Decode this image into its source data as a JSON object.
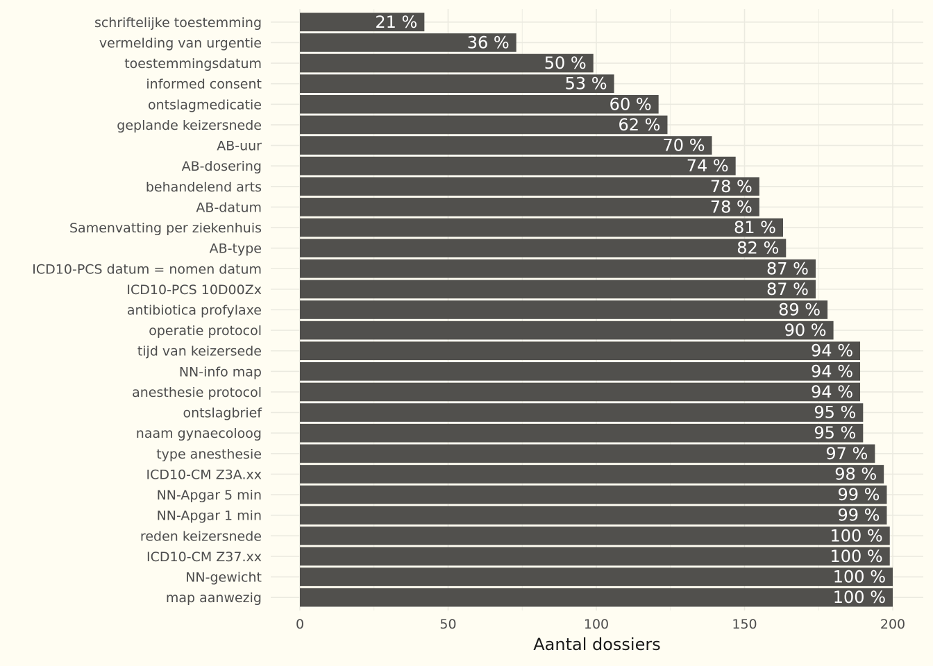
{
  "chart_data": {
    "type": "bar",
    "orientation": "horizontal",
    "categories": [
      "schriftelijke toestemming",
      "vermelding van urgentie",
      "toestemmingsdatum",
      "informed consent",
      "ontslagmedicatie",
      "geplande keizersnede",
      "AB-uur",
      "AB-dosering",
      "behandelend arts",
      "AB-datum",
      "Samenvatting per ziekenhuis",
      "AB-type",
      "ICD10-PCS datum = nomen datum",
      "ICD10-PCS 10D00Zx",
      "antibiotica profylaxe",
      "operatie protocol",
      "tijd van keizersede",
      "NN-info map",
      "anesthesie protocol",
      "ontslagbrief",
      "naam gynaecoloog",
      "type anesthesie",
      "ICD10-CM Z3A.xx",
      "NN-Apgar 5 min",
      "NN-Apgar 1 min",
      "reden keizersnede",
      "ICD10-CM Z37.xx",
      "NN-gewicht",
      "map aanwezig"
    ],
    "values": [
      42,
      73,
      99,
      106,
      121,
      124,
      139,
      147,
      155,
      155,
      163,
      164,
      174,
      174,
      178,
      180,
      189,
      189,
      189,
      190,
      190,
      194,
      197,
      198,
      198,
      199,
      199,
      200,
      200
    ],
    "data_labels": [
      "21 %",
      "36 %",
      "50 %",
      "53 %",
      "60 %",
      "62 %",
      "70 %",
      "74 %",
      "78 %",
      "78 %",
      "81 %",
      "82 %",
      "87 %",
      "87 %",
      "89 %",
      "90 %",
      "94 %",
      "94 %",
      "94 %",
      "95 %",
      "95 %",
      "97 %",
      "98 %",
      "99 %",
      "99 %",
      "100 %",
      "100 %",
      "100 %",
      "100 %"
    ],
    "xlabel": "Aantal dossiers",
    "ylabel": "",
    "xlim": [
      0,
      200
    ],
    "xticks": [
      0,
      50,
      100,
      150,
      200
    ],
    "xtick_labels": [
      "0",
      "50",
      "100",
      "150",
      "200"
    ],
    "grid": true,
    "legend": "none",
    "colors": {
      "bar": "#51504d",
      "background": "#fffdf2",
      "grid": "#ebeae0",
      "data_label": "#ffffff"
    }
  }
}
